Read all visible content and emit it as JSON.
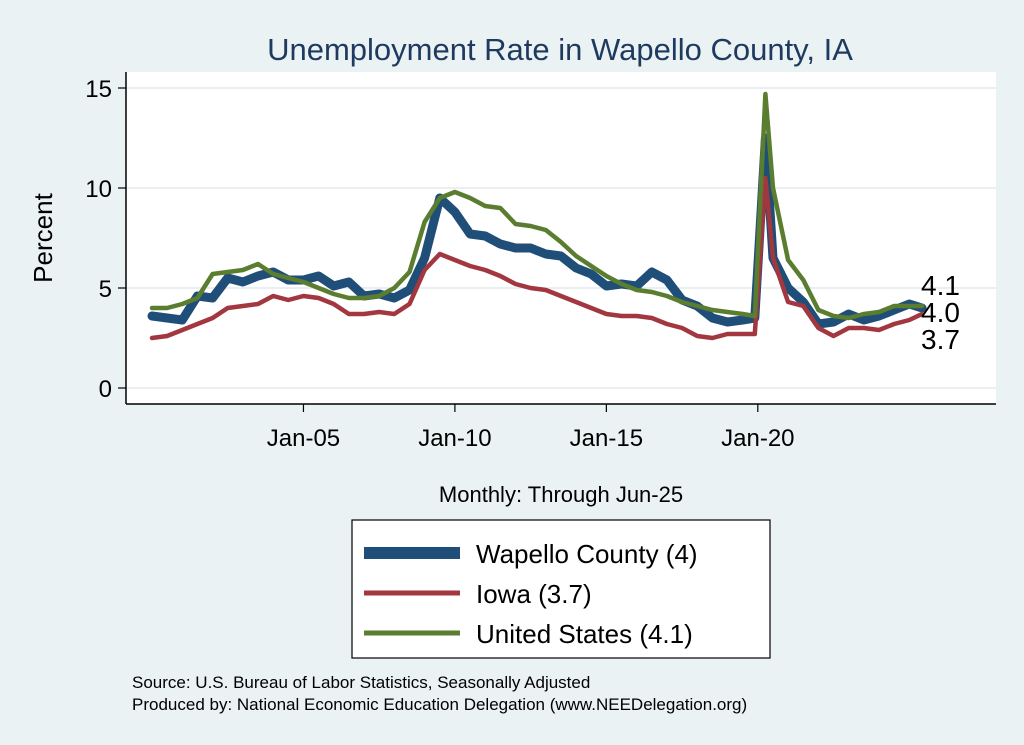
{
  "chart_data": {
    "type": "line",
    "title": "Unemployment Rate in Wapello  County, IA",
    "xlabel": "Monthly: Through Jun-25",
    "ylabel": "Percent",
    "x_tick_labels": [
      "Jan-05",
      "Jan-10",
      "Jan-15",
      "Jan-20"
    ],
    "y_tick_labels": [
      "0",
      "5",
      "10",
      "15"
    ],
    "ylim": [
      0,
      15
    ],
    "xlim": [
      2000.0,
      2025.42
    ],
    "grid": true,
    "legend_position": "bottom",
    "series": [
      {
        "name": "Wapello  County (4)",
        "color": "#1f4e79",
        "end_label": "4.0",
        "points": [
          [
            2000.0,
            3.6
          ],
          [
            2000.5,
            3.5
          ],
          [
            2001.0,
            3.4
          ],
          [
            2001.5,
            4.6
          ],
          [
            2002.0,
            4.5
          ],
          [
            2002.5,
            5.5
          ],
          [
            2003.0,
            5.3
          ],
          [
            2003.5,
            5.6
          ],
          [
            2004.0,
            5.8
          ],
          [
            2004.5,
            5.4
          ],
          [
            2005.0,
            5.4
          ],
          [
            2005.5,
            5.6
          ],
          [
            2006.0,
            5.1
          ],
          [
            2006.5,
            5.3
          ],
          [
            2007.0,
            4.6
          ],
          [
            2007.5,
            4.7
          ],
          [
            2008.0,
            4.5
          ],
          [
            2008.5,
            4.9
          ],
          [
            2009.0,
            6.5
          ],
          [
            2009.5,
            9.5
          ],
          [
            2010.0,
            8.8
          ],
          [
            2010.5,
            7.7
          ],
          [
            2011.0,
            7.6
          ],
          [
            2011.5,
            7.2
          ],
          [
            2012.0,
            7.0
          ],
          [
            2012.5,
            7.0
          ],
          [
            2013.0,
            6.7
          ],
          [
            2013.5,
            6.6
          ],
          [
            2014.0,
            6.0
          ],
          [
            2014.5,
            5.7
          ],
          [
            2015.0,
            5.1
          ],
          [
            2015.5,
            5.2
          ],
          [
            2016.0,
            5.1
          ],
          [
            2016.5,
            5.8
          ],
          [
            2017.0,
            5.4
          ],
          [
            2017.5,
            4.4
          ],
          [
            2018.0,
            4.1
          ],
          [
            2018.5,
            3.5
          ],
          [
            2019.0,
            3.3
          ],
          [
            2019.5,
            3.4
          ],
          [
            2019.9,
            3.5
          ],
          [
            2020.25,
            12.5
          ],
          [
            2020.5,
            6.5
          ],
          [
            2021.0,
            5.0
          ],
          [
            2021.5,
            4.3
          ],
          [
            2022.0,
            3.2
          ],
          [
            2022.5,
            3.3
          ],
          [
            2023.0,
            3.7
          ],
          [
            2023.5,
            3.4
          ],
          [
            2024.0,
            3.6
          ],
          [
            2024.5,
            3.9
          ],
          [
            2025.0,
            4.2
          ],
          [
            2025.42,
            4.0
          ]
        ]
      },
      {
        "name": "Iowa (3.7)",
        "color": "#a2373f",
        "end_label": "3.7",
        "points": [
          [
            2000.0,
            2.5
          ],
          [
            2000.5,
            2.6
          ],
          [
            2001.0,
            2.9
          ],
          [
            2001.5,
            3.2
          ],
          [
            2002.0,
            3.5
          ],
          [
            2002.5,
            4.0
          ],
          [
            2003.0,
            4.1
          ],
          [
            2003.5,
            4.2
          ],
          [
            2004.0,
            4.6
          ],
          [
            2004.5,
            4.4
          ],
          [
            2005.0,
            4.6
          ],
          [
            2005.5,
            4.5
          ],
          [
            2006.0,
            4.2
          ],
          [
            2006.5,
            3.7
          ],
          [
            2007.0,
            3.7
          ],
          [
            2007.5,
            3.8
          ],
          [
            2008.0,
            3.7
          ],
          [
            2008.5,
            4.2
          ],
          [
            2009.0,
            5.9
          ],
          [
            2009.5,
            6.7
          ],
          [
            2010.0,
            6.4
          ],
          [
            2010.5,
            6.1
          ],
          [
            2011.0,
            5.9
          ],
          [
            2011.5,
            5.6
          ],
          [
            2012.0,
            5.2
          ],
          [
            2012.5,
            5.0
          ],
          [
            2013.0,
            4.9
          ],
          [
            2013.5,
            4.6
          ],
          [
            2014.0,
            4.3
          ],
          [
            2014.5,
            4.0
          ],
          [
            2015.0,
            3.7
          ],
          [
            2015.5,
            3.6
          ],
          [
            2016.0,
            3.6
          ],
          [
            2016.5,
            3.5
          ],
          [
            2017.0,
            3.2
          ],
          [
            2017.5,
            3.0
          ],
          [
            2018.0,
            2.6
          ],
          [
            2018.5,
            2.5
          ],
          [
            2019.0,
            2.7
          ],
          [
            2019.5,
            2.7
          ],
          [
            2019.9,
            2.7
          ],
          [
            2020.25,
            10.5
          ],
          [
            2020.5,
            6.5
          ],
          [
            2021.0,
            4.3
          ],
          [
            2021.5,
            4.1
          ],
          [
            2022.0,
            3.0
          ],
          [
            2022.5,
            2.6
          ],
          [
            2023.0,
            3.0
          ],
          [
            2023.5,
            3.0
          ],
          [
            2024.0,
            2.9
          ],
          [
            2024.5,
            3.2
          ],
          [
            2025.0,
            3.4
          ],
          [
            2025.42,
            3.7
          ]
        ]
      },
      {
        "name": "United States (4.1)",
        "color": "#5b7d2f",
        "end_label": "4.1",
        "points": [
          [
            2000.0,
            4.0
          ],
          [
            2000.5,
            4.0
          ],
          [
            2001.0,
            4.2
          ],
          [
            2001.5,
            4.5
          ],
          [
            2002.0,
            5.7
          ],
          [
            2002.5,
            5.8
          ],
          [
            2003.0,
            5.9
          ],
          [
            2003.5,
            6.2
          ],
          [
            2004.0,
            5.7
          ],
          [
            2004.5,
            5.5
          ],
          [
            2005.0,
            5.3
          ],
          [
            2005.5,
            5.0
          ],
          [
            2006.0,
            4.7
          ],
          [
            2006.5,
            4.5
          ],
          [
            2007.0,
            4.5
          ],
          [
            2007.5,
            4.6
          ],
          [
            2008.0,
            5.0
          ],
          [
            2008.5,
            5.8
          ],
          [
            2009.0,
            8.3
          ],
          [
            2009.5,
            9.5
          ],
          [
            2010.0,
            9.8
          ],
          [
            2010.5,
            9.5
          ],
          [
            2011.0,
            9.1
          ],
          [
            2011.5,
            9.0
          ],
          [
            2012.0,
            8.2
          ],
          [
            2012.5,
            8.1
          ],
          [
            2013.0,
            7.9
          ],
          [
            2013.5,
            7.3
          ],
          [
            2014.0,
            6.6
          ],
          [
            2014.5,
            6.1
          ],
          [
            2015.0,
            5.6
          ],
          [
            2015.5,
            5.2
          ],
          [
            2016.0,
            4.9
          ],
          [
            2016.5,
            4.8
          ],
          [
            2017.0,
            4.6
          ],
          [
            2017.5,
            4.3
          ],
          [
            2018.0,
            4.1
          ],
          [
            2018.5,
            3.9
          ],
          [
            2019.0,
            3.8
          ],
          [
            2019.5,
            3.7
          ],
          [
            2019.9,
            3.6
          ],
          [
            2020.25,
            14.7
          ],
          [
            2020.5,
            10.0
          ],
          [
            2021.0,
            6.4
          ],
          [
            2021.5,
            5.4
          ],
          [
            2022.0,
            3.9
          ],
          [
            2022.5,
            3.6
          ],
          [
            2023.0,
            3.5
          ],
          [
            2023.5,
            3.7
          ],
          [
            2024.0,
            3.8
          ],
          [
            2024.5,
            4.1
          ],
          [
            2025.0,
            4.1
          ],
          [
            2025.42,
            4.1
          ]
        ]
      }
    ]
  },
  "source_line_1": "Source: U.S. Bureau of Labor Statistics, Seasonally Adjusted",
  "source_line_2": "Produced by: National Economic Education Delegation (www.NEEDelegation.org)"
}
